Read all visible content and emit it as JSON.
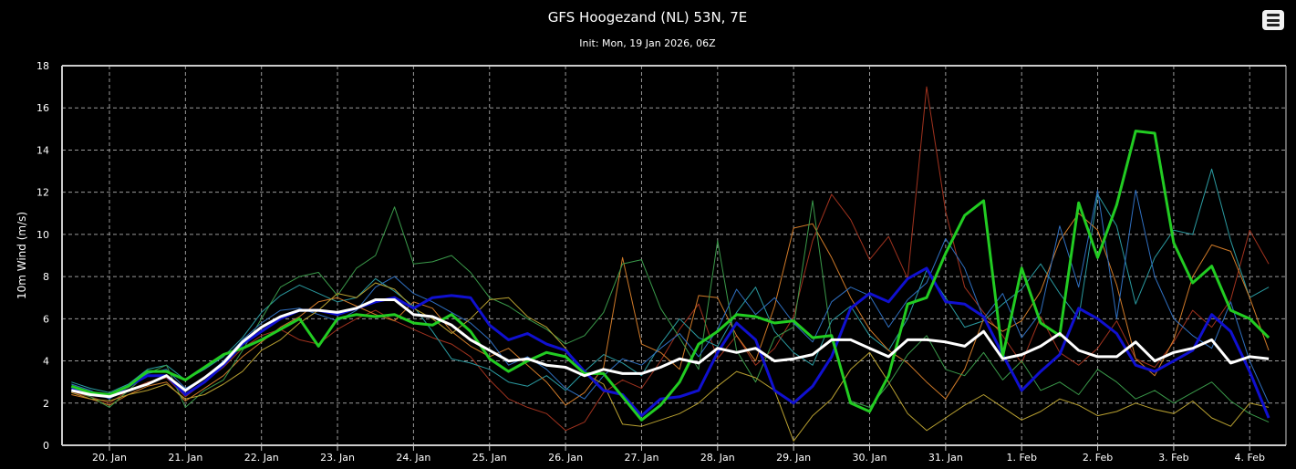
{
  "chart_data": {
    "type": "line",
    "title": "GFS Hoogezand (NL) 53N, 7E",
    "subtitle": "Init: Mon, 19 Jan 2026, 06Z",
    "ylabel": "10m Wind (m/s)",
    "xlabel": "",
    "ylim": [
      0,
      18
    ],
    "yticks": [
      "0",
      "2",
      "4",
      "6",
      "8",
      "10",
      "12",
      "14",
      "16",
      "18"
    ],
    "xticks": [
      "20. Jan",
      "21. Jan",
      "22. Jan",
      "23. Jan",
      "24. Jan",
      "25. Jan",
      "26. Jan",
      "27. Jan",
      "28. Jan",
      "29. Jan",
      "30. Jan",
      "31. Jan",
      "1. Feb",
      "2. Feb",
      "3. Feb",
      "4. Feb"
    ],
    "x_start": "2026-01-19 12Z",
    "x_step_hours": 6,
    "grid": true,
    "legend": "none",
    "background": "#000000",
    "series": [
      {
        "role": "member",
        "color": "#a0321e",
        "values": [
          2.5,
          2.3,
          2.0,
          2.6,
          3.0,
          3.2,
          2.3,
          3.0,
          3.7,
          4.6,
          5.2,
          5.5,
          5.0,
          4.8,
          5.5,
          6.0,
          6.4,
          5.9,
          5.5,
          5.1,
          4.8,
          4.2,
          3.1,
          2.2,
          1.8,
          1.5,
          0.7,
          1.1,
          2.5,
          3.1,
          2.7,
          4.0,
          5.5,
          6.7,
          4.1,
          5.2,
          3.8,
          4.6,
          6.1,
          9.7,
          11.9,
          10.7,
          8.8,
          9.9,
          7.9,
          17.0,
          11.1,
          7.5,
          6.3,
          5.2,
          3.9,
          6.1,
          4.4,
          3.8,
          4.6,
          5.9,
          4.1,
          3.7,
          4.9,
          6.4,
          5.6,
          6.9,
          10.2,
          8.6
        ]
      },
      {
        "role": "member",
        "color": "#2a9aa0",
        "values": [
          3.0,
          2.7,
          2.5,
          2.9,
          3.6,
          3.8,
          3.1,
          3.6,
          4.2,
          5.1,
          6.3,
          7.1,
          7.6,
          7.2,
          6.8,
          7.0,
          7.9,
          7.3,
          6.6,
          5.4,
          4.1,
          3.9,
          3.6,
          3.0,
          2.8,
          3.3,
          2.6,
          3.5,
          4.3,
          3.9,
          3.3,
          4.8,
          6.0,
          5.1,
          4.7,
          6.3,
          7.5,
          5.4,
          4.4,
          3.8,
          5.9,
          6.6,
          5.2,
          4.5,
          6.0,
          8.3,
          7.0,
          5.6,
          5.9,
          6.7,
          7.4,
          8.6,
          7.2,
          6.0,
          11.9,
          10.4,
          6.7,
          8.9,
          10.2,
          10.0,
          13.1,
          9.7,
          7.0,
          7.5
        ]
      },
      {
        "role": "member",
        "color": "#d07a28",
        "values": [
          2.4,
          2.2,
          1.9,
          2.4,
          2.8,
          3.0,
          2.1,
          2.7,
          3.3,
          4.2,
          4.9,
          5.6,
          6.1,
          6.8,
          7.0,
          6.6,
          6.2,
          5.9,
          6.8,
          6.5,
          5.4,
          4.7,
          4.2,
          4.6,
          3.8,
          3.0,
          1.9,
          2.5,
          3.7,
          8.9,
          4.8,
          4.4,
          3.6,
          7.1,
          7.0,
          5.2,
          4.0,
          6.6,
          10.3,
          10.5,
          8.9,
          7.0,
          5.5,
          4.5,
          3.9,
          3.0,
          2.2,
          3.6,
          6.0,
          5.4,
          5.9,
          7.3,
          9.7,
          11.0,
          10.2,
          7.6,
          4.1,
          3.3,
          5.0,
          8.0,
          9.5,
          9.2,
          7.0,
          4.5
        ]
      },
      {
        "role": "member",
        "color": "#3a9a4a",
        "values": [
          2.6,
          2.3,
          1.8,
          2.6,
          3.4,
          3.8,
          1.8,
          2.6,
          3.1,
          4.5,
          6.0,
          7.5,
          8.0,
          8.2,
          7.1,
          8.4,
          9.0,
          11.3,
          8.6,
          8.7,
          9.0,
          8.2,
          7.0,
          6.6,
          6.0,
          5.5,
          4.8,
          5.2,
          6.3,
          8.6,
          8.8,
          6.5,
          5.1,
          3.6,
          9.7,
          4.5,
          3.0,
          5.1,
          5.6,
          11.6,
          5.0,
          2.1,
          1.8,
          2.9,
          4.3,
          5.2,
          3.6,
          3.3,
          4.4,
          3.1,
          4.0,
          2.6,
          3.0,
          2.4,
          3.6,
          3.0,
          2.2,
          2.6,
          2.0,
          2.5,
          3.0,
          2.1,
          1.5,
          1.1
        ]
      },
      {
        "role": "member",
        "color": "#2f6fc0",
        "values": [
          2.9,
          2.6,
          2.2,
          2.8,
          3.4,
          3.6,
          2.7,
          3.2,
          4.0,
          5.0,
          5.8,
          6.4,
          6.5,
          6.2,
          5.9,
          6.4,
          7.5,
          8.0,
          7.2,
          6.8,
          6.3,
          5.8,
          5.0,
          3.8,
          4.2,
          3.6,
          2.7,
          2.2,
          3.3,
          4.1,
          3.8,
          4.6,
          5.3,
          4.2,
          5.5,
          7.4,
          6.2,
          7.0,
          5.8,
          4.9,
          6.8,
          7.5,
          7.1,
          5.6,
          6.9,
          7.7,
          9.8,
          8.4,
          6.0,
          7.2,
          5.1,
          6.3,
          10.4,
          7.5,
          12.1,
          6.0,
          12.1,
          8.0,
          6.0,
          5.2,
          4.6,
          6.8,
          4.0,
          2.0
        ]
      },
      {
        "role": "member",
        "color": "#b8a030",
        "values": [
          2.5,
          2.2,
          2.1,
          2.4,
          2.6,
          2.9,
          2.2,
          2.4,
          2.9,
          3.5,
          4.5,
          5.0,
          5.8,
          6.4,
          7.2,
          7.0,
          7.7,
          7.4,
          6.5,
          6.0,
          5.3,
          6.0,
          6.9,
          7.0,
          6.1,
          5.6,
          4.6,
          3.4,
          2.9,
          1.0,
          0.9,
          1.2,
          1.5,
          2.0,
          2.8,
          3.5,
          3.2,
          2.6,
          0.2,
          1.4,
          2.2,
          3.6,
          4.4,
          3.0,
          1.5,
          0.7,
          1.3,
          1.9,
          2.4,
          1.8,
          1.2,
          1.6,
          2.2,
          1.9,
          1.4,
          1.6,
          2.0,
          1.7,
          1.5,
          2.1,
          1.3,
          0.9,
          2.0,
          1.8
        ]
      },
      {
        "role": "highlight",
        "color": "#1010d0",
        "values": [
          2.7,
          2.4,
          2.3,
          2.8,
          3.3,
          3.3,
          2.4,
          3.0,
          3.8,
          4.8,
          5.4,
          6.0,
          6.4,
          6.4,
          6.2,
          6.5,
          6.8,
          7.0,
          6.5,
          7.0,
          7.1,
          7.0,
          5.7,
          5.0,
          5.3,
          4.8,
          4.5,
          3.5,
          2.6,
          2.4,
          1.4,
          2.2,
          2.3,
          2.6,
          4.4,
          5.8,
          5.0,
          2.6,
          2.0,
          2.8,
          4.2,
          6.5,
          7.2,
          6.8,
          7.9,
          8.4,
          6.8,
          6.7,
          6.1,
          4.3,
          2.6,
          3.5,
          4.3,
          6.5,
          6.0,
          5.3,
          3.8,
          3.5,
          4.0,
          4.5,
          6.2,
          5.4,
          3.5,
          1.3
        ]
      },
      {
        "role": "highlight",
        "color": "#22cc22",
        "values": [
          2.8,
          2.5,
          2.4,
          2.8,
          3.5,
          3.5,
          3.1,
          3.7,
          4.3,
          4.6,
          5.0,
          5.5,
          6.0,
          4.7,
          6.0,
          6.2,
          6.1,
          6.2,
          5.8,
          5.7,
          6.2,
          5.4,
          4.1,
          3.5,
          4.0,
          4.4,
          4.2,
          3.4,
          3.4,
          2.3,
          1.2,
          1.9,
          3.0,
          4.8,
          5.4,
          6.2,
          6.1,
          5.8,
          5.9,
          5.1,
          5.2,
          2.0,
          1.6,
          3.3,
          6.7,
          7.0,
          9.1,
          10.9,
          11.6,
          4.2,
          8.4,
          5.8,
          5.2,
          11.5,
          8.9,
          11.4,
          14.9,
          14.8,
          9.6,
          7.7,
          8.5,
          6.4,
          6.0,
          5.1
        ]
      },
      {
        "role": "mean",
        "color": "#ffffff",
        "values": [
          2.6,
          2.4,
          2.3,
          2.6,
          2.9,
          3.3,
          2.6,
          3.2,
          3.9,
          4.9,
          5.6,
          6.1,
          6.4,
          6.4,
          6.3,
          6.5,
          6.9,
          6.9,
          6.2,
          6.1,
          5.7,
          5.0,
          4.5,
          4.0,
          4.1,
          3.8,
          3.7,
          3.3,
          3.6,
          3.4,
          3.4,
          3.7,
          4.1,
          3.9,
          4.6,
          4.4,
          4.6,
          4.0,
          4.1,
          4.3,
          5.0,
          5.0,
          4.6,
          4.2,
          5.0,
          5.0,
          4.9,
          4.7,
          5.4,
          4.1,
          4.3,
          4.7,
          5.3,
          4.5,
          4.2,
          4.2,
          4.9,
          4.0,
          4.4,
          4.6,
          5.0,
          3.9,
          4.2,
          4.1
        ]
      }
    ]
  },
  "ui": {
    "menu_icon": "hamburger-menu-icon"
  }
}
